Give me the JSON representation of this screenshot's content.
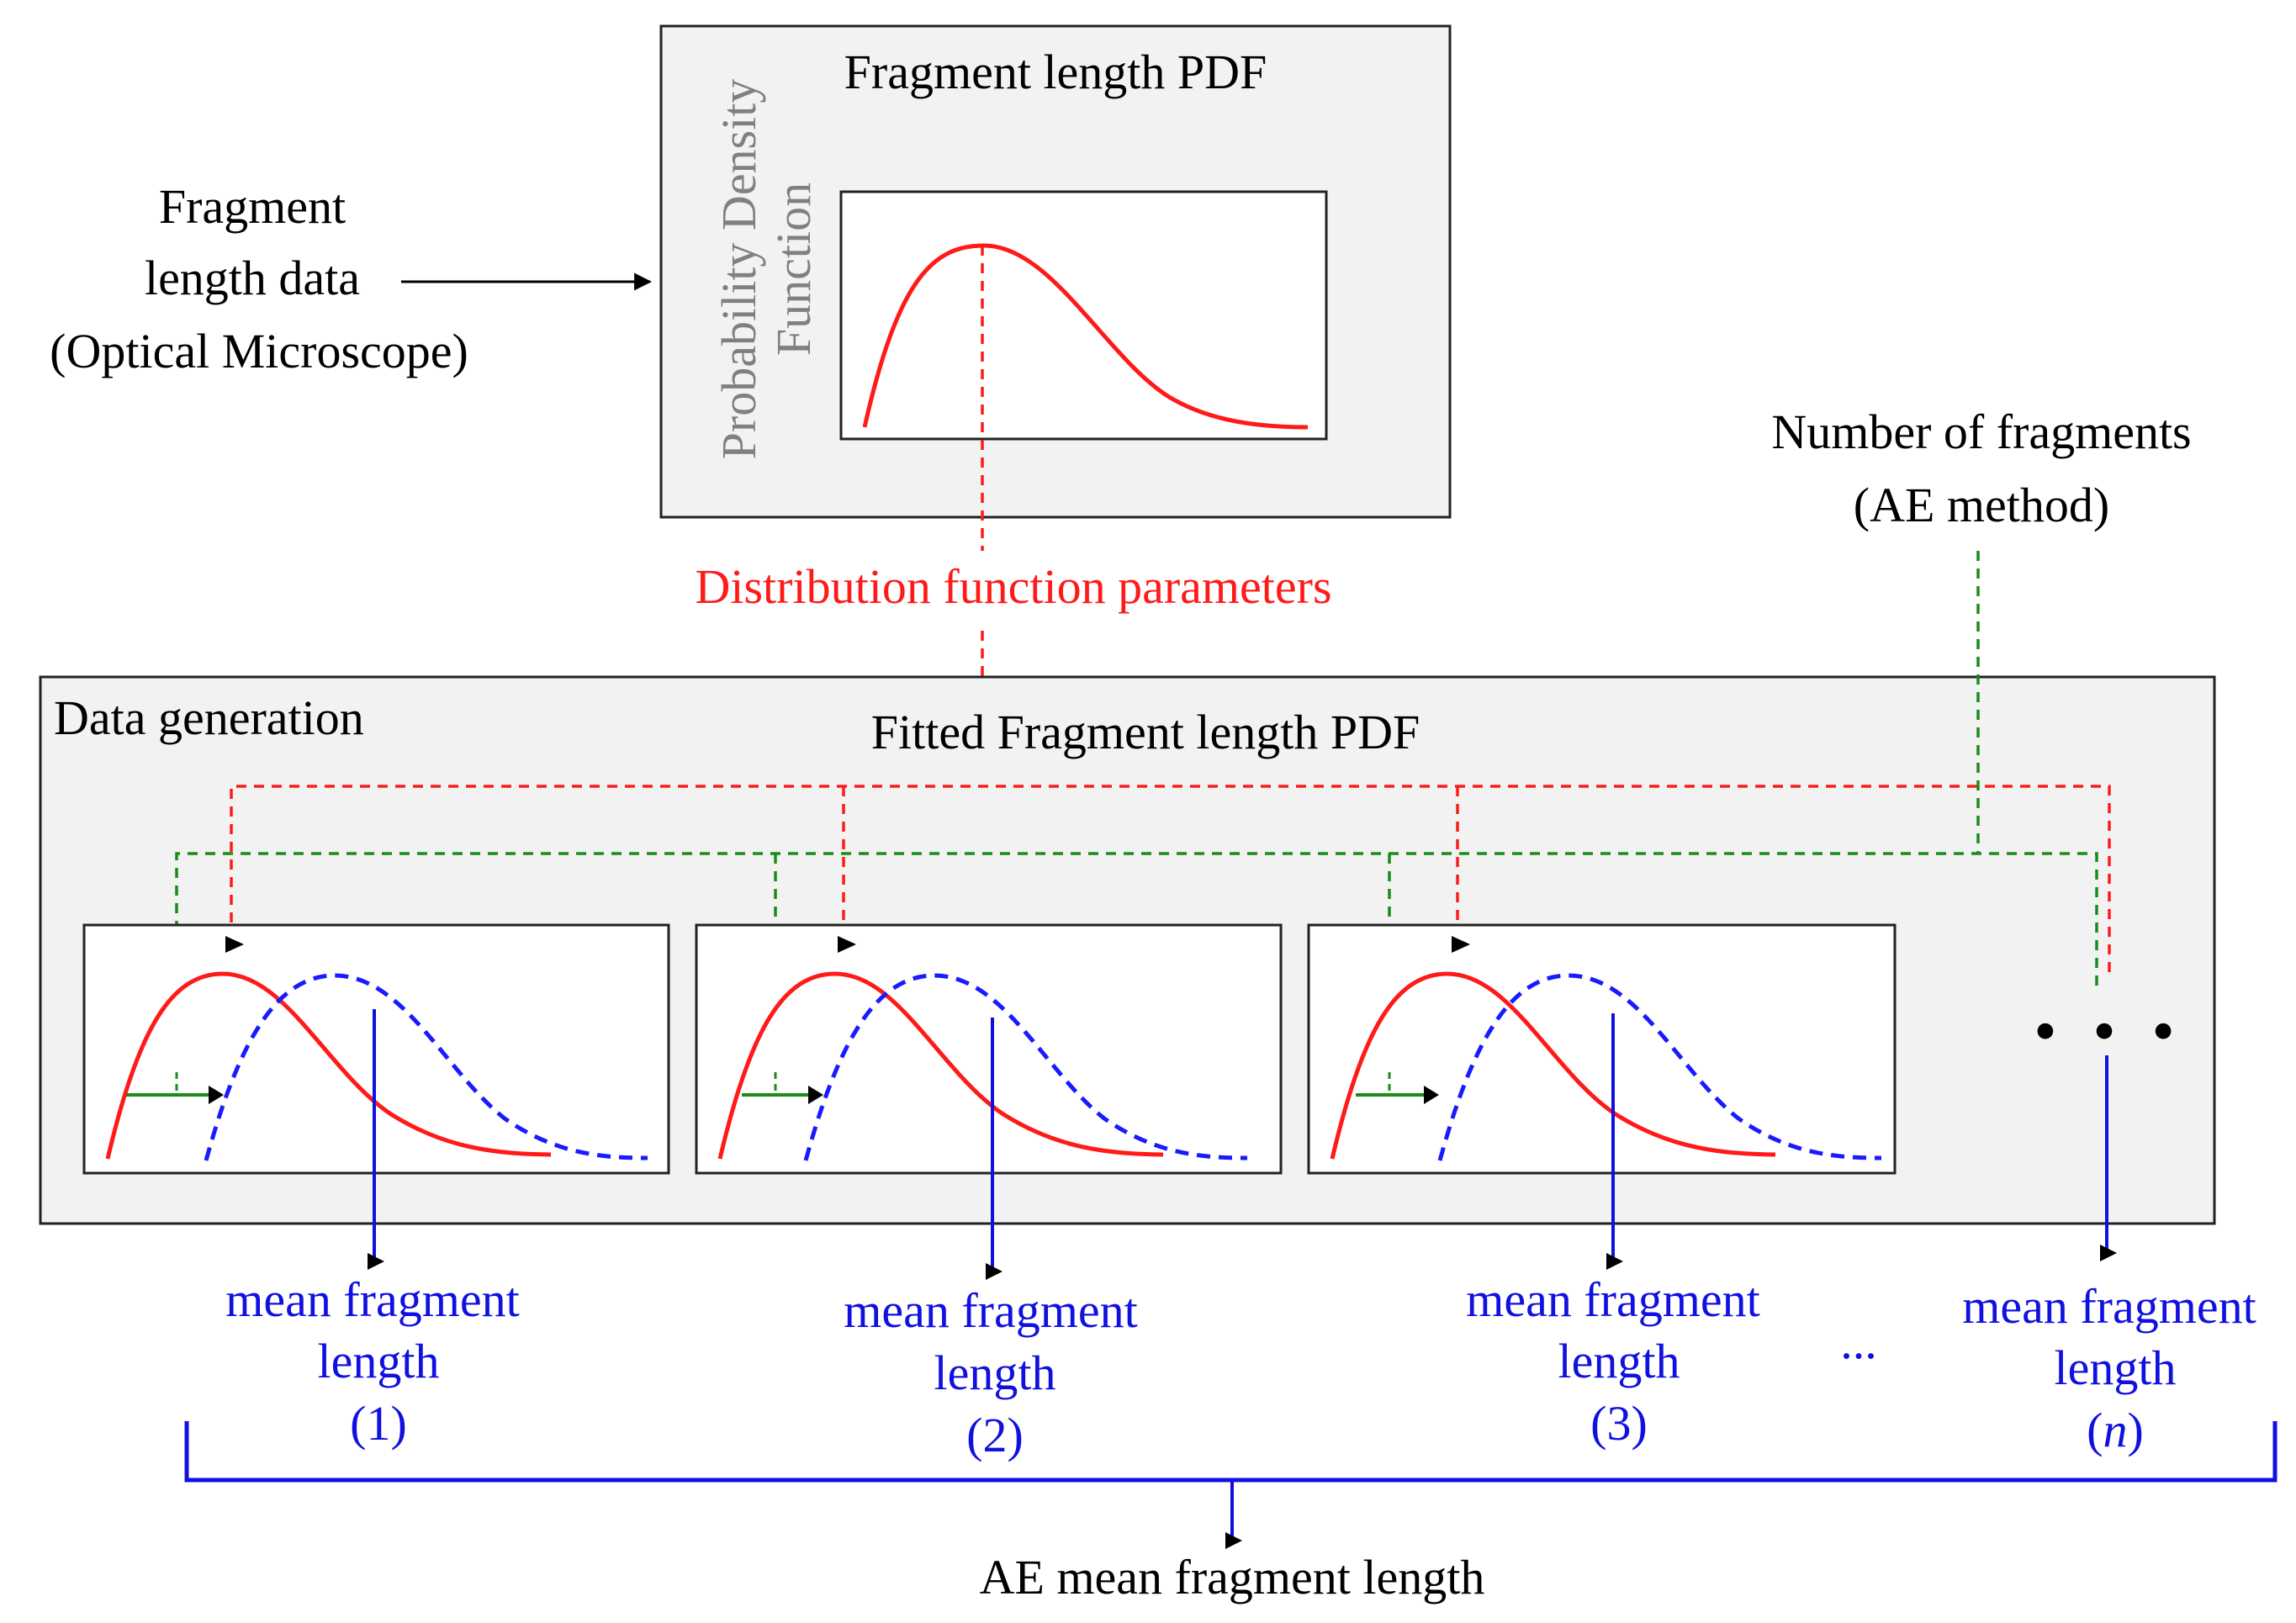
{
  "colors": {
    "pdf_curve": "#ff1a1a",
    "shifted_curve": "#1a1aff",
    "count_line": "#1a8c1a",
    "mean_line": "#1010e0",
    "panel_fill": "#f2f2f2"
  },
  "top_panel": {
    "title": "Fragment length PDF",
    "ylabel_line1": "Probability Density",
    "ylabel_line2": "Function"
  },
  "input": {
    "line1": "Fragment",
    "line2": "length data",
    "line3": "(Optical Microscope)"
  },
  "count_source": {
    "line1": "Number of fragments",
    "line2": "(AE method)"
  },
  "parameters_label": "Distribution function parameters",
  "data_generation": {
    "label": "Data generation",
    "subtitle": "Fitted Fragment length PDF",
    "continuation": "• • •"
  },
  "outputs": [
    {
      "line1": "mean fragment",
      "line2": "length",
      "index_open": "(",
      "index": "1",
      "index_close": ")",
      "italic": false
    },
    {
      "line1": "mean fragment",
      "line2": "length",
      "index_open": "(",
      "index": "2",
      "index_close": ")",
      "italic": false
    },
    {
      "line1": "mean fragment",
      "line2": "length",
      "index_open": "(",
      "index": "3",
      "index_close": ")",
      "italic": false
    },
    {
      "line1": "mean fragment",
      "line2": "length",
      "index_open": "(",
      "index": "n",
      "index_close": ")",
      "italic": true
    }
  ],
  "outputs_ellipsis": "...",
  "final_output": "AE mean fragment length"
}
